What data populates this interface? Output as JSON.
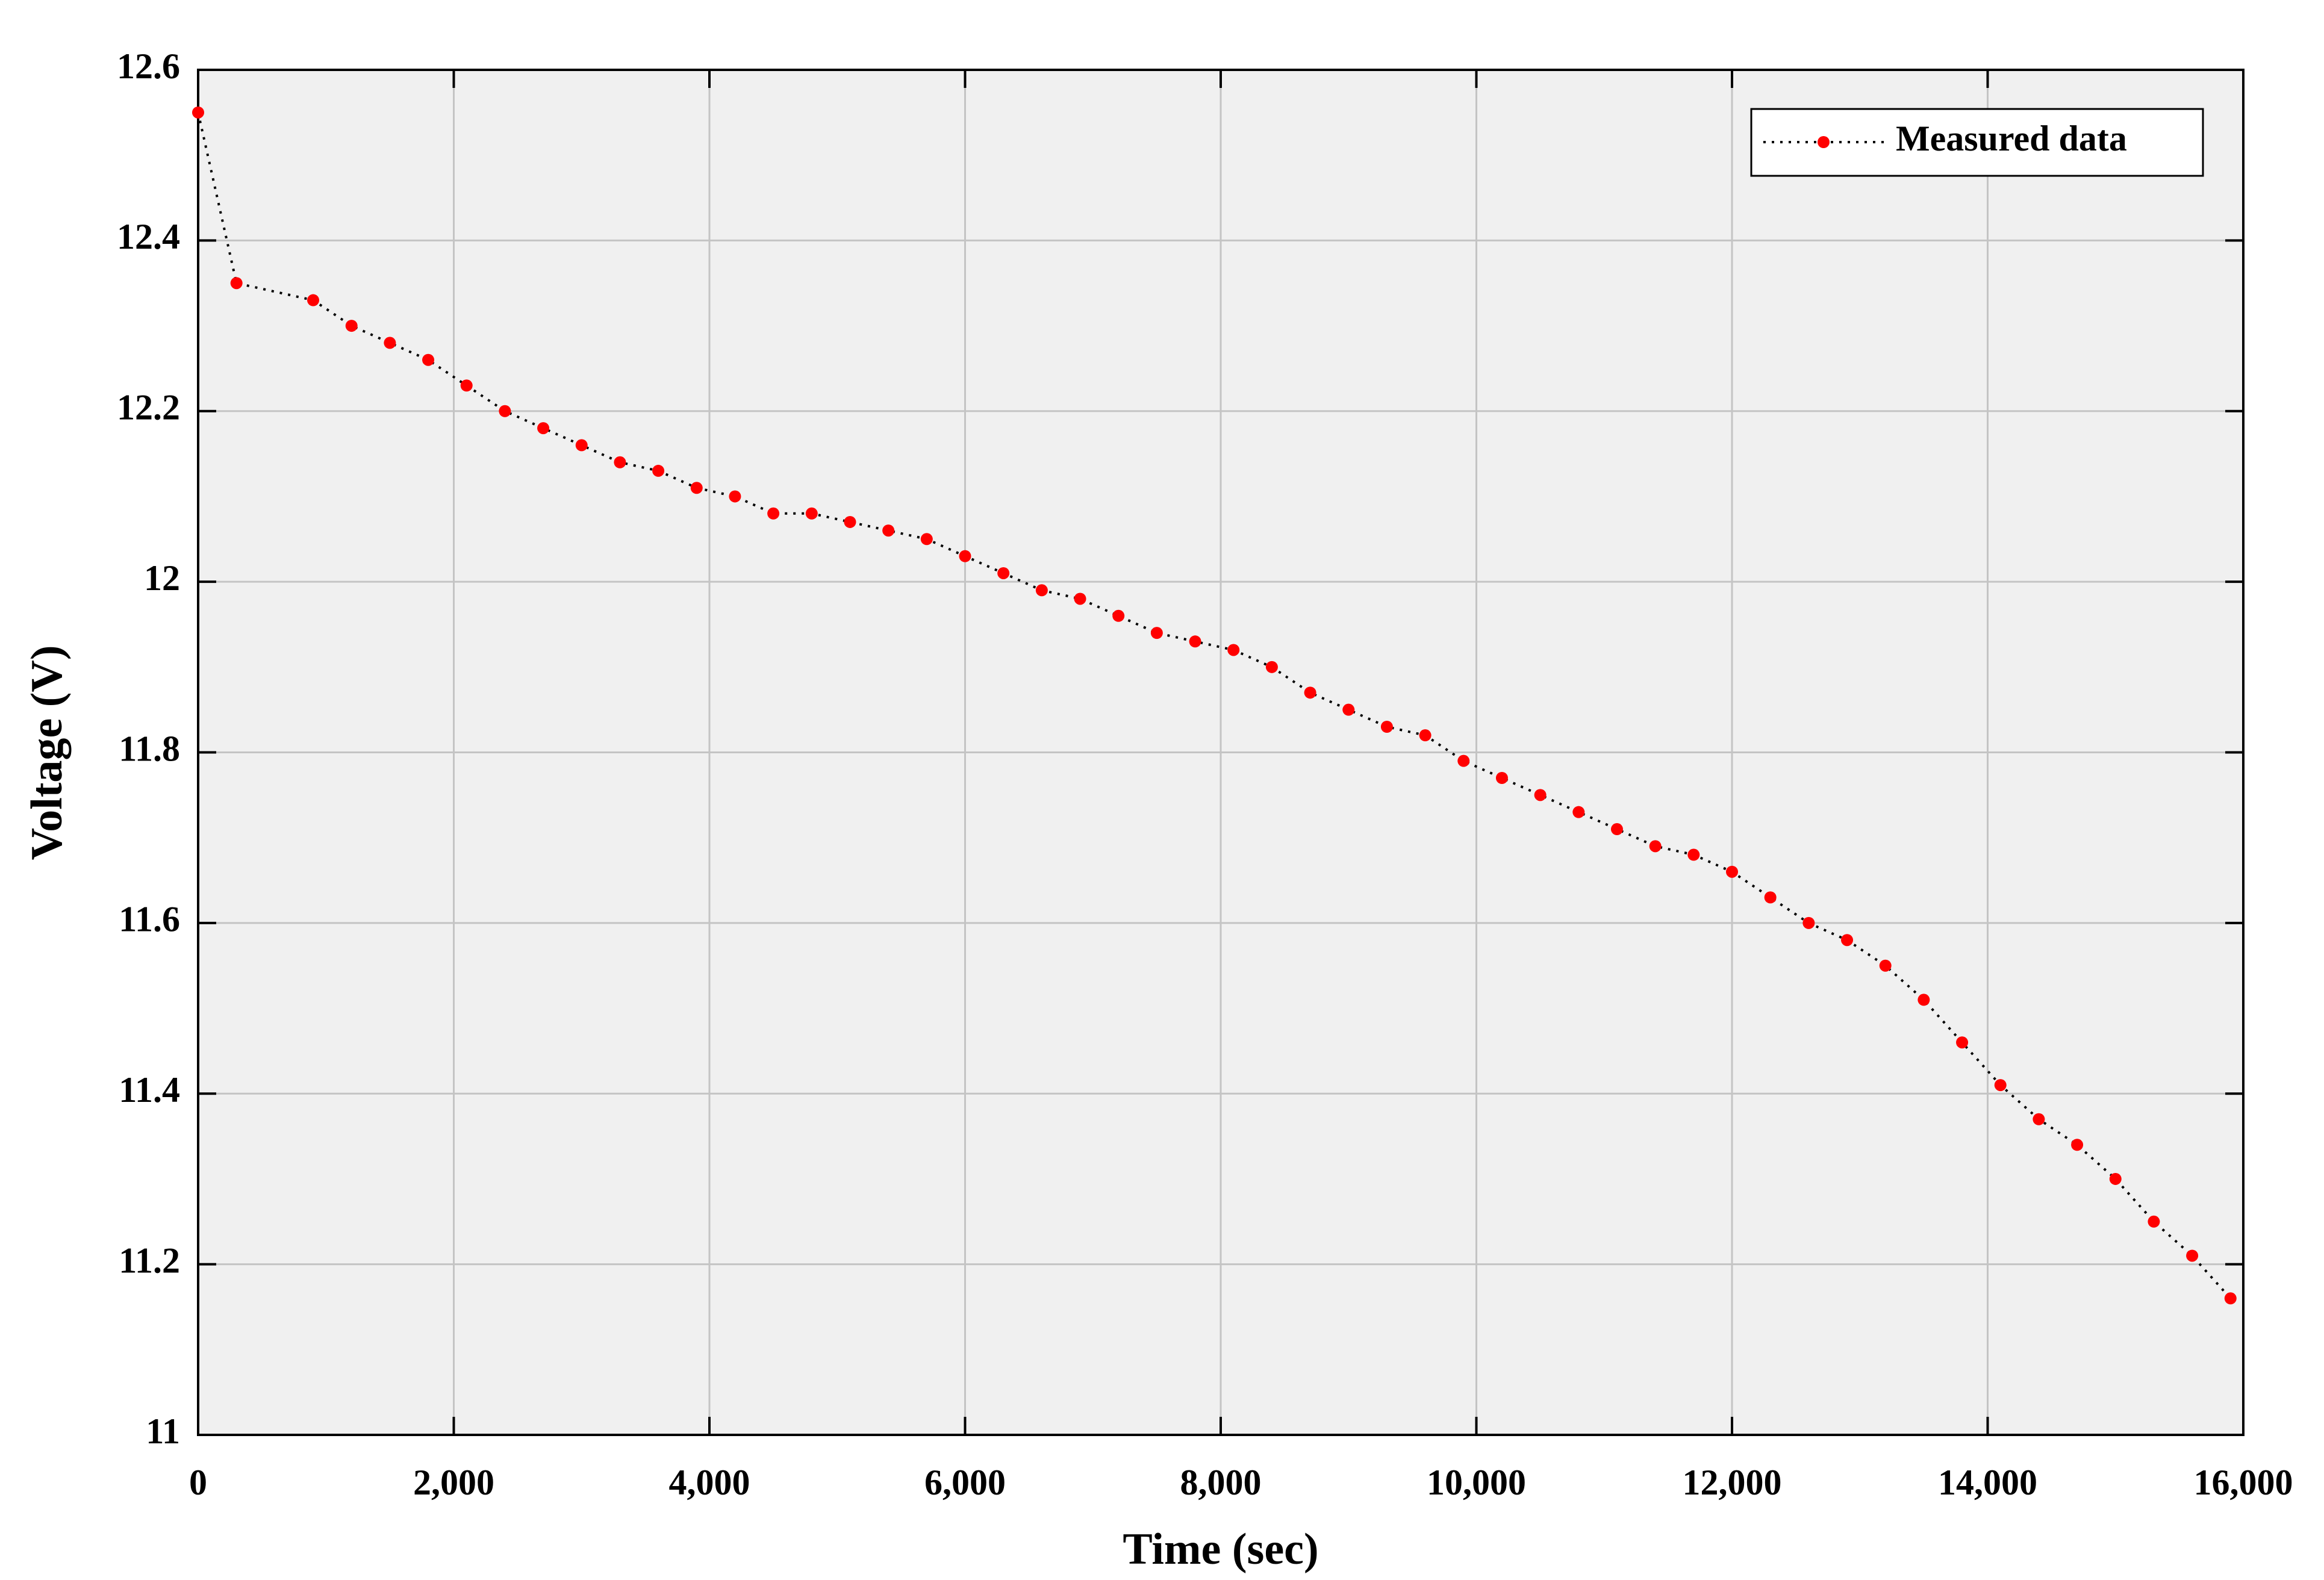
{
  "chart_data": {
    "type": "line",
    "xlabel": "Time (sec)",
    "ylabel": "Voltage (V)",
    "x": [
      0,
      300,
      900,
      1200,
      1500,
      1800,
      2100,
      2400,
      2700,
      3000,
      3300,
      3600,
      3900,
      4200,
      4500,
      4800,
      5100,
      5400,
      5700,
      6000,
      6300,
      6600,
      6900,
      7200,
      7500,
      7800,
      8100,
      8400,
      8700,
      9000,
      9300,
      9600,
      9900,
      10200,
      10500,
      10800,
      11100,
      11400,
      11700,
      12000,
      12300,
      12600,
      12900,
      13200,
      13500,
      13800,
      14100,
      14400,
      14700,
      15000,
      15300,
      15600,
      15900
    ],
    "series": [
      {
        "name": "Measured data",
        "color": "#ff0000",
        "line_color": "#000000",
        "values": [
          12.55,
          12.35,
          12.33,
          12.3,
          12.28,
          12.26,
          12.23,
          12.2,
          12.18,
          12.16,
          12.14,
          12.13,
          12.11,
          12.1,
          12.08,
          12.08,
          12.07,
          12.06,
          12.05,
          12.03,
          12.01,
          11.99,
          11.98,
          11.96,
          11.94,
          11.93,
          11.92,
          11.9,
          11.87,
          11.85,
          11.83,
          11.82,
          11.79,
          11.77,
          11.75,
          11.73,
          11.71,
          11.69,
          11.68,
          11.66,
          11.63,
          11.6,
          11.58,
          11.55,
          11.51,
          11.46,
          11.41,
          11.37,
          11.34,
          11.3,
          11.25,
          11.21,
          11.16
        ]
      }
    ],
    "xlim": [
      0,
      16000
    ],
    "xticks": [
      0,
      {
        "value": 2000,
        "label": "2,000"
      },
      {
        "value": 4000,
        "label": "4,000"
      },
      {
        "value": 6000,
        "label": "6,000"
      },
      {
        "value": 8000,
        "label": "8,000"
      },
      {
        "value": 10000,
        "label": "10,000"
      },
      {
        "value": 12000,
        "label": "12,000"
      },
      {
        "value": 14000,
        "label": "14,000"
      },
      {
        "value": 16000,
        "label": "16,000"
      }
    ],
    "ylim": [
      11,
      12.6
    ],
    "yticks": [
      11,
      11.2,
      11.4,
      11.6,
      11.8,
      12,
      12.2,
      12.4,
      12.6
    ],
    "grid": true,
    "legend": "upper right"
  }
}
